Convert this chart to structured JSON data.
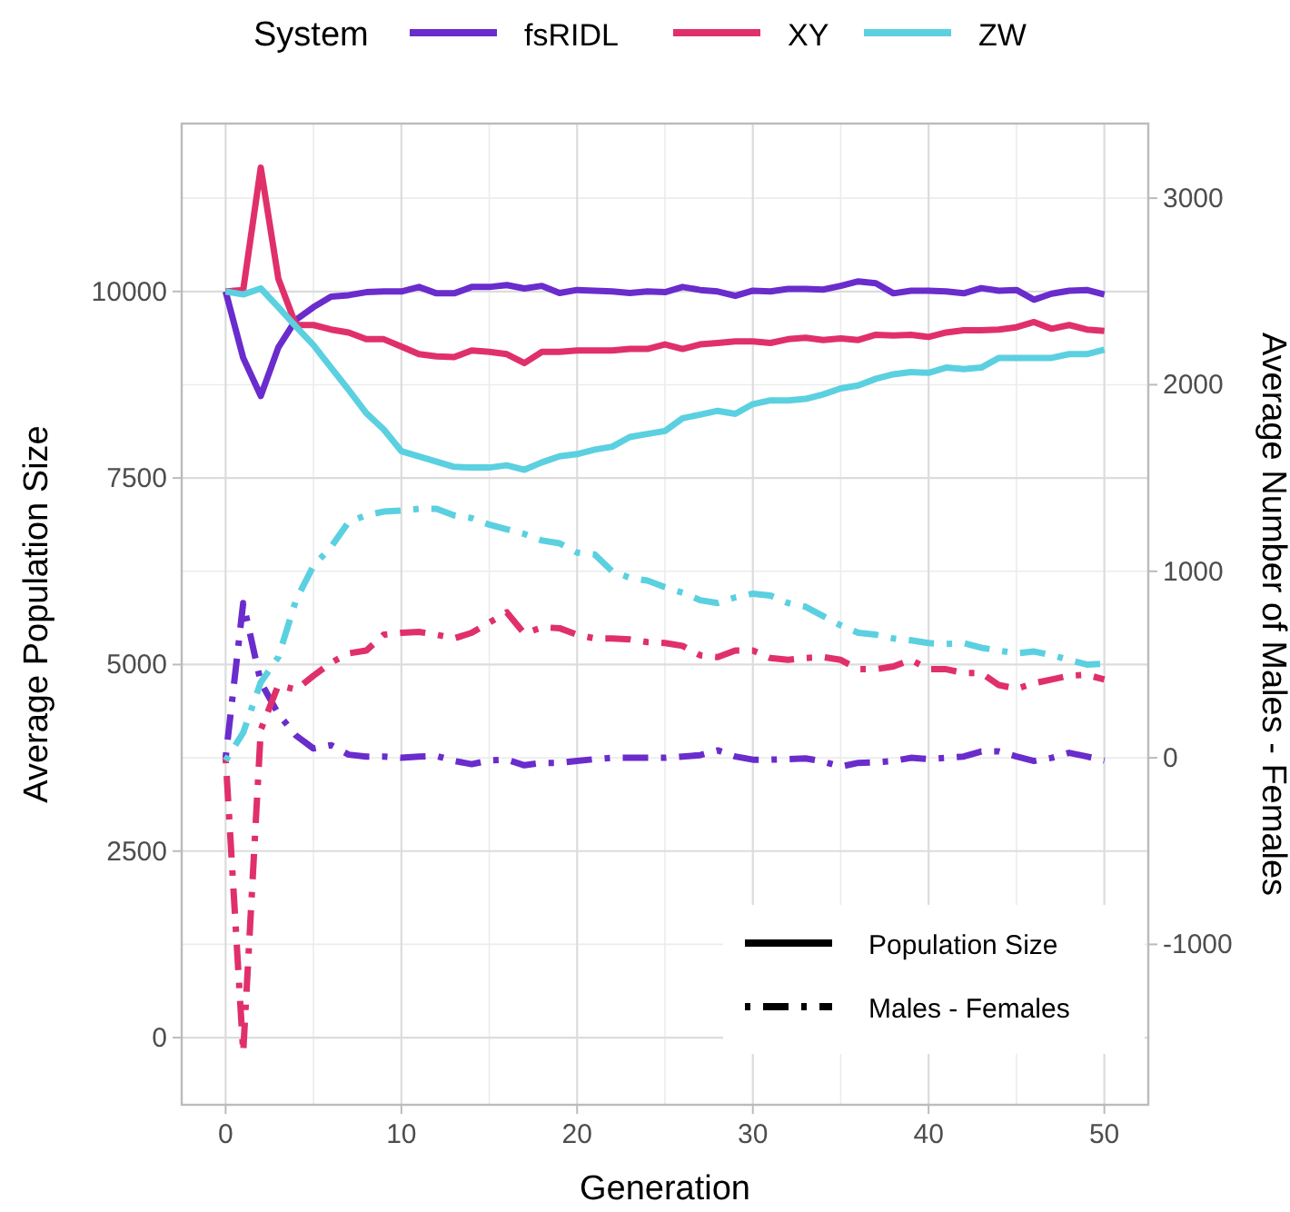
{
  "chart_data": {
    "type": "line",
    "xlabel": "Generation",
    "ylabel": "Average Population Size",
    "y2label": "Average Number of Males - Females",
    "legend_title": "System",
    "legend": "top",
    "grid": true,
    "x": [
      0,
      1,
      2,
      3,
      4,
      5,
      6,
      7,
      8,
      9,
      10,
      11,
      12,
      13,
      14,
      15,
      16,
      17,
      18,
      19,
      20,
      21,
      22,
      23,
      24,
      25,
      26,
      27,
      28,
      29,
      30,
      31,
      32,
      33,
      34,
      35,
      36,
      37,
      38,
      39,
      40,
      41,
      42,
      43,
      44,
      45,
      46,
      47,
      48,
      49,
      50
    ],
    "xlim": [
      -2.5,
      52.5
    ],
    "xticks": [
      0,
      10,
      20,
      30,
      40,
      50
    ],
    "ylim": [
      -900,
      12250
    ],
    "yticks": [
      0,
      2500,
      5000,
      7500,
      10000
    ],
    "y2lim": [
      -1860,
      3400
    ],
    "y2ticks": [
      -1000,
      0,
      1000,
      2000,
      3000
    ],
    "annotations": [
      "Population Size",
      "Males - Females"
    ],
    "series": [
      {
        "name": "fsRIDL",
        "color": "#6a2ccc",
        "line_style": "solid",
        "values": [
          10000,
          9110,
          8600,
          9250,
          9620,
          9790,
          9930,
          9950,
          9990,
          10000,
          10000,
          10060,
          9975,
          9975,
          10060,
          10060,
          10085,
          10040,
          10075,
          9980,
          10020,
          10010,
          10000,
          9980,
          10000,
          9990,
          10060,
          10020,
          10000,
          9940,
          10010,
          10000,
          10035,
          10035,
          10025,
          10075,
          10135,
          10110,
          9975,
          10010,
          10010,
          10000,
          9975,
          10045,
          10010,
          10020,
          9890,
          9970,
          10010,
          10020,
          9960
        ]
      },
      {
        "name": "XY",
        "color": "#e0306a",
        "line_style": "solid",
        "values": [
          10000,
          10020,
          11660,
          10170,
          9550,
          9550,
          9490,
          9450,
          9360,
          9360,
          9260,
          9160,
          9130,
          9120,
          9210,
          9190,
          9160,
          9040,
          9190,
          9190,
          9210,
          9210,
          9210,
          9230,
          9230,
          9290,
          9230,
          9290,
          9310,
          9330,
          9330,
          9310,
          9360,
          9380,
          9350,
          9370,
          9350,
          9420,
          9410,
          9420,
          9390,
          9450,
          9480,
          9480,
          9490,
          9520,
          9590,
          9500,
          9550,
          9490,
          9470
        ]
      },
      {
        "name": "ZW",
        "color": "#5bd0e0",
        "line_style": "solid",
        "values": [
          10000,
          9960,
          10040,
          9790,
          9530,
          9280,
          8980,
          8680,
          8370,
          8150,
          7860,
          7790,
          7720,
          7650,
          7640,
          7640,
          7670,
          7610,
          7710,
          7790,
          7820,
          7880,
          7920,
          8050,
          8090,
          8130,
          8300,
          8350,
          8400,
          8360,
          8490,
          8540,
          8540,
          8560,
          8620,
          8700,
          8740,
          8830,
          8890,
          8920,
          8910,
          8980,
          8960,
          8980,
          9110,
          9110,
          9110,
          9110,
          9160,
          9160,
          9220
        ]
      },
      {
        "color": "#6a2ccc",
        "line_style": "dashed",
        "axis": "y2",
        "values": [
          0,
          830,
          405,
          235,
          120,
          50,
          68,
          17,
          7,
          7,
          0,
          7,
          10,
          -17,
          -34,
          -14,
          -10,
          -40,
          -27,
          -27,
          -17,
          -7,
          0,
          0,
          0,
          0,
          7,
          14,
          40,
          7,
          -10,
          -10,
          -7,
          -3,
          -20,
          -47,
          -27,
          -24,
          -17,
          0,
          -7,
          0,
          7,
          34,
          34,
          7,
          -17,
          0,
          27,
          7,
          -14
        ]
      },
      {
        "color": "#e0306a",
        "line_style": "dashed",
        "axis": "y2",
        "values": [
          0,
          -1580,
          150,
          390,
          365,
          440,
          510,
          560,
          575,
          660,
          670,
          675,
          660,
          640,
          670,
          725,
          780,
          665,
          700,
          695,
          660,
          640,
          640,
          635,
          620,
          615,
          600,
          550,
          540,
          575,
          575,
          535,
          525,
          535,
          540,
          525,
          475,
          475,
          490,
          525,
          475,
          475,
          455,
          455,
          390,
          370,
          400,
          420,
          440,
          445,
          420
        ]
      },
      {
        "color": "#5bd0e0",
        "line_style": "dashed",
        "axis": "y2",
        "values": [
          -15,
          135,
          405,
          540,
          845,
          1030,
          1130,
          1265,
          1300,
          1320,
          1325,
          1335,
          1335,
          1300,
          1285,
          1250,
          1225,
          1200,
          1165,
          1150,
          1100,
          1090,
          1000,
          965,
          950,
          915,
          885,
          845,
          830,
          860,
          880,
          870,
          830,
          810,
          760,
          710,
          670,
          660,
          640,
          630,
          615,
          610,
          615,
          590,
          575,
          560,
          570,
          550,
          525,
          500,
          505
        ]
      }
    ]
  }
}
